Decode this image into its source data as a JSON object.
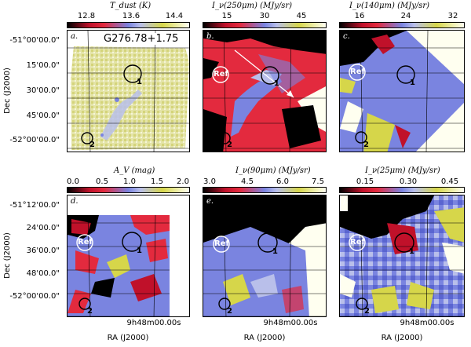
{
  "colorbars": [
    {
      "title": "T_dust (K)",
      "ticks": [
        "12.8",
        "13.6",
        "14.4"
      ],
      "gradient": "linear-gradient(90deg,#000 0%,#c0112a 18%,#e32a3e 30%,#7a84e0 50%,#b9bfea 60%,#d6d64a 78%,#fffff0 100%)"
    },
    {
      "title": "I_ν(250μm) (MJy/sr)",
      "ticks": [
        "15",
        "30",
        "45"
      ],
      "gradient": "linear-gradient(90deg,#000 0%,#c0112a 18%,#e32a3e 30%,#7a84e0 50%,#b9bfea 60%,#d6d64a 78%,#fffff0 100%)"
    },
    {
      "title": "I_ν(140μm) (MJy/sr)",
      "ticks": [
        "16",
        "24",
        "32"
      ],
      "gradient": "linear-gradient(90deg,#000 0%,#c0112a 18%,#e32a3e 30%,#7a84e0 50%,#b9bfea 60%,#d6d64a 78%,#fffff0 100%)"
    },
    {
      "title": "A_V (mag)",
      "ticks": [
        "0.0",
        "0.5",
        "1.0",
        "1.5",
        "2.0"
      ],
      "gradient": "linear-gradient(90deg,#000 0%,#c0112a 18%,#e32a3e 30%,#7a84e0 50%,#b9bfea 60%,#d6d64a 78%,#fffff0 100%)"
    },
    {
      "title": "I_ν(90μm) (MJy/sr)",
      "ticks": [
        "3.0",
        "4.5",
        "6.0",
        "7.5"
      ],
      "gradient": "linear-gradient(90deg,#000 0%,#c0112a 18%,#e32a3e 30%,#7a84e0 50%,#b9bfea 60%,#d6d64a 78%,#fffff0 100%)"
    },
    {
      "title": "I_ν(25μm) (MJy/sr)",
      "ticks": [
        "0.15",
        "0.30",
        "0.45"
      ],
      "gradient": "linear-gradient(90deg,#000 0%,#c0112a 18%,#e32a3e 30%,#7a84e0 50%,#b9bfea 60%,#d6d64a 78%,#fffff0 100%)"
    }
  ],
  "panels": [
    {
      "label": "a.",
      "title": "G276.78+1.75",
      "ref": "",
      "c1": "1",
      "c2": "2"
    },
    {
      "label": "b.",
      "ref": "Ref",
      "c1": "1",
      "c2": "2"
    },
    {
      "label": "c.",
      "ref": "Ref",
      "c1": "1",
      "c2": "2"
    },
    {
      "label": "d.",
      "ref": "Ref",
      "c1": "1",
      "c2": "2"
    },
    {
      "label": "e.",
      "ref": "Ref",
      "c1": "1",
      "c2": "2"
    },
    {
      "label": "f.",
      "ref": "Ref",
      "c1": "1",
      "c2": "2"
    }
  ],
  "axes": {
    "ylabel": "Dec (J2000)",
    "xlabel": "RA (J2000)",
    "top_yticks": [
      "-51°00'00.0\"",
      "15'00.0\"",
      "30'00.0\"",
      "45'00.0\"",
      "-52°00'00.0\""
    ],
    "bottom_yticks": [
      "-51°12'00.0\"",
      "24'00.0\"",
      "36'00.0\"",
      "48'00.0\"",
      "-52°00'00.0\""
    ],
    "xtick": "9h48m00.00s"
  }
}
